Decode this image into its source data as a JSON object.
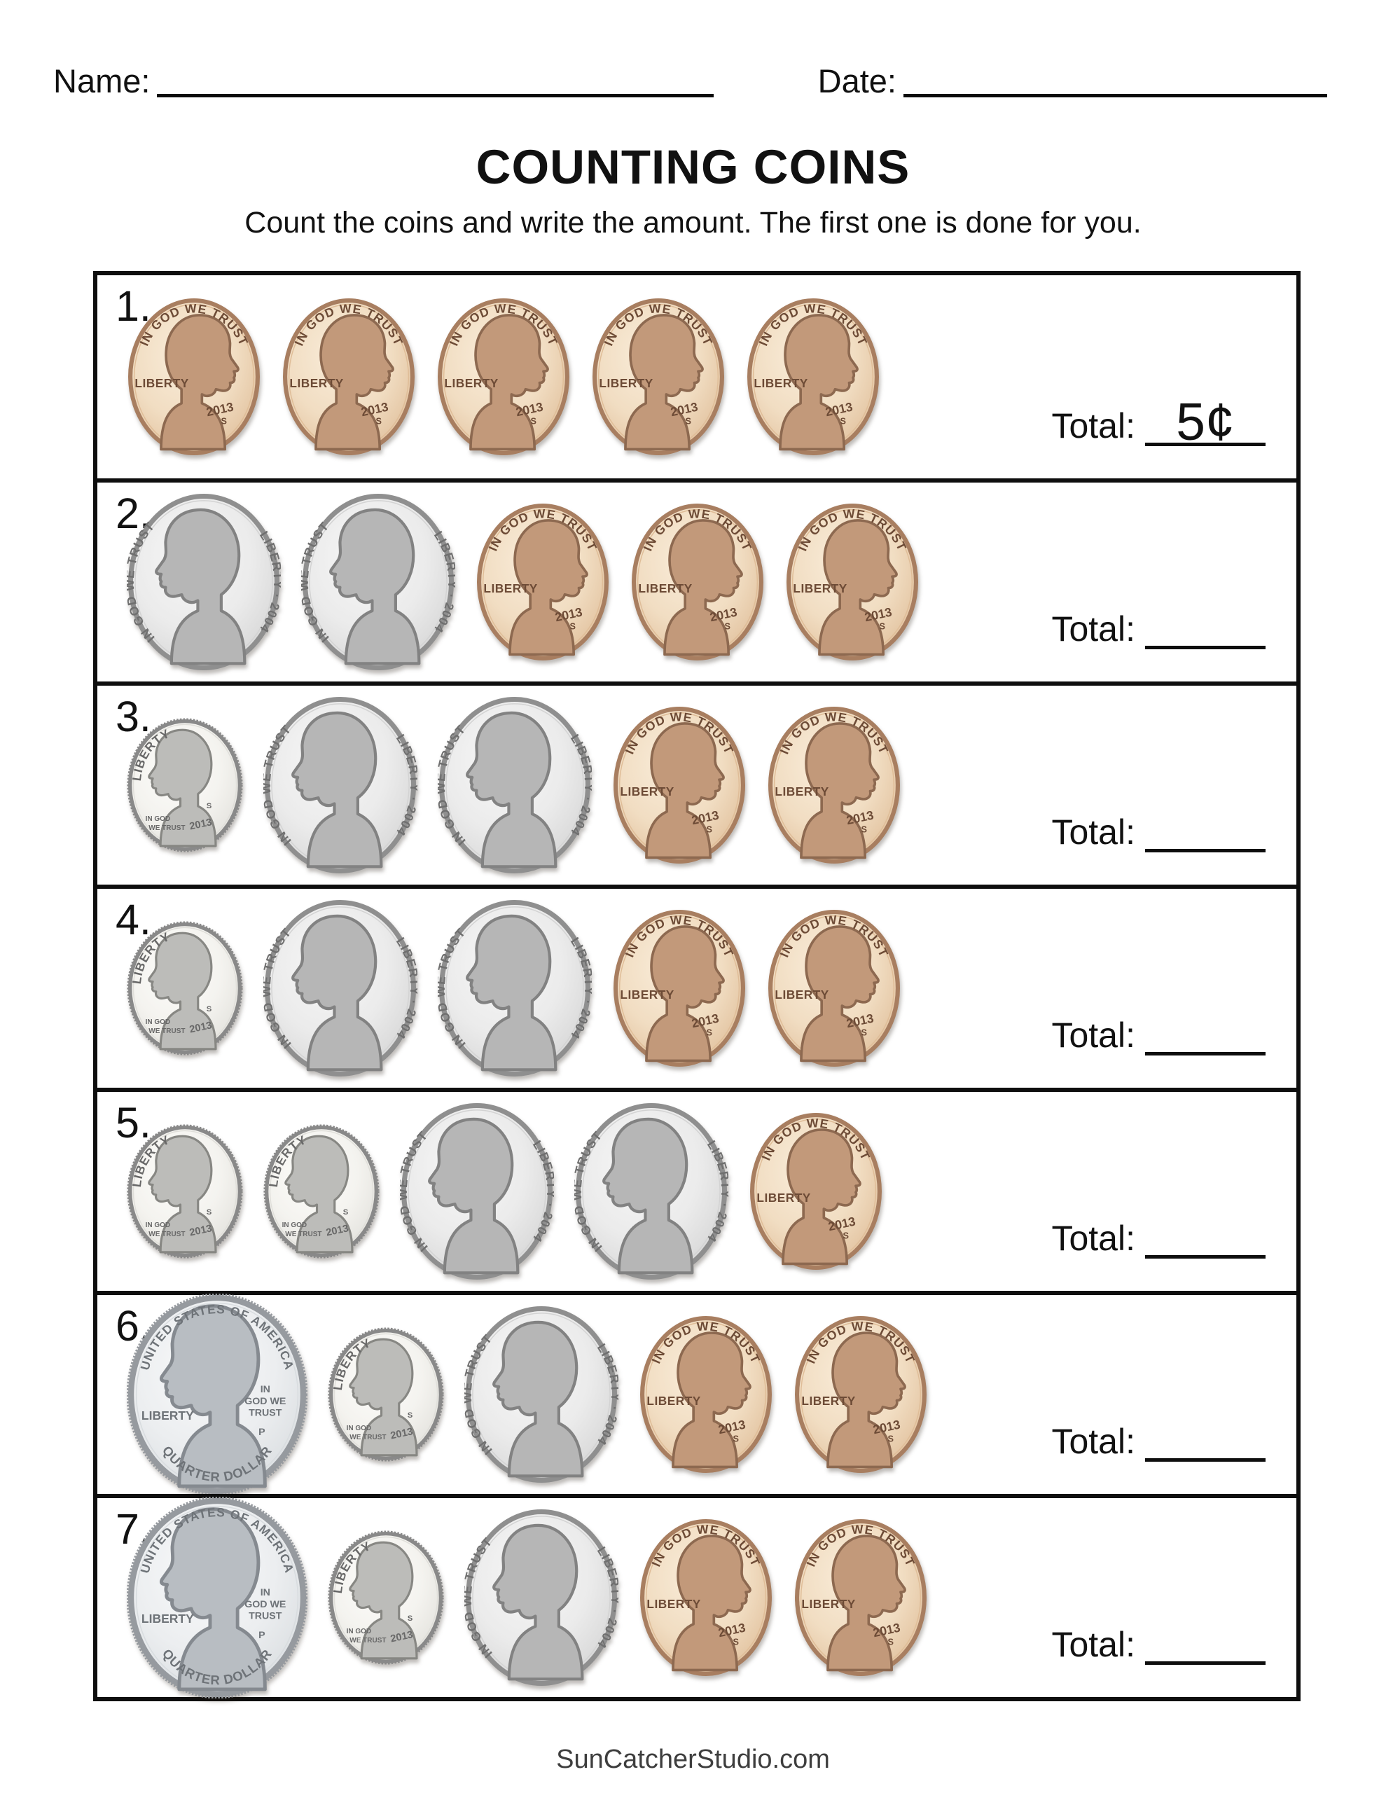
{
  "header": {
    "name_label": "Name:",
    "date_label": "Date:"
  },
  "title": "COUNTING COINS",
  "instructions": "Count the coins and write the amount.  The first one is done for you.",
  "total_label": "Total:",
  "footer": "SunCatcherStudio.com",
  "coin_definitions": {
    "penny": {
      "inscriptions": {
        "motto": "IN GOD WE TRUST",
        "liberty": "LIBERTY",
        "year": "2013",
        "mint_mark": "S"
      },
      "colors": {
        "body_light": "#f9ecd9",
        "body": "#f1ddc2",
        "body_edge": "#dfbd98",
        "rim": "#a87e60",
        "portrait": "#c2997a",
        "portrait_outline": "#8d6950",
        "text": "#6d4b36"
      }
    },
    "nickel": {
      "inscriptions": {
        "motto": "IN GOD WE TRUST",
        "liberty_year": "LIBERTY · 2004"
      },
      "colors": {
        "body_light": "#f7f7f7",
        "body": "#ebebeb",
        "body_edge": "#d3d3d3",
        "rim": "#8f8f8f",
        "portrait": "#b6b6b6",
        "portrait_outline": "#828282",
        "text": "#6f6f6f"
      }
    },
    "dime": {
      "inscriptions": {
        "liberty": "LIBERTY",
        "motto_line1": "IN GOD",
        "motto_line2": "WE TRUST",
        "year": "2013",
        "mint_mark": "S"
      },
      "colors": {
        "body_light": "#fdfdfb",
        "body": "#f4f3ef",
        "body_edge": "#e0dfda",
        "rim": "#898989",
        "portrait": "#bcbcb9",
        "portrait_outline": "#878783",
        "text": "#686868"
      }
    },
    "quarter": {
      "inscriptions": {
        "top": "UNITED STATES OF AMERICA",
        "liberty": "LIBERTY",
        "motto_line1": "IN",
        "motto_line2": "GOD WE",
        "motto_line3": "TRUST",
        "mint_mark": "P",
        "bottom": "QUARTER DOLLAR"
      },
      "colors": {
        "body_light": "#f8f9fa",
        "body": "#eceef0",
        "body_edge": "#d8dcdf",
        "rim": "#969a9f",
        "portrait": "#b8bdc2",
        "portrait_outline": "#858a90",
        "text": "#6e7378"
      }
    }
  },
  "rows": [
    {
      "number": "1.",
      "coins": [
        "penny",
        "penny",
        "penny",
        "penny",
        "penny"
      ],
      "answer": "5¢"
    },
    {
      "number": "2.",
      "coins": [
        "nickel",
        "nickel",
        "penny",
        "penny",
        "penny"
      ],
      "answer": ""
    },
    {
      "number": "3.",
      "coins": [
        "dime",
        "nickel",
        "nickel",
        "penny",
        "penny"
      ],
      "answer": ""
    },
    {
      "number": "4.",
      "coins": [
        "dime",
        "nickel",
        "nickel",
        "penny",
        "penny"
      ],
      "answer": ""
    },
    {
      "number": "5.",
      "coins": [
        "dime",
        "dime",
        "nickel",
        "nickel",
        "penny"
      ],
      "answer": ""
    },
    {
      "number": "6.",
      "coins": [
        "quarter",
        "dime",
        "nickel",
        "penny",
        "penny"
      ],
      "answer": ""
    },
    {
      "number": "7.",
      "coins": [
        "quarter",
        "dime",
        "nickel",
        "penny",
        "penny"
      ],
      "answer": ""
    }
  ]
}
